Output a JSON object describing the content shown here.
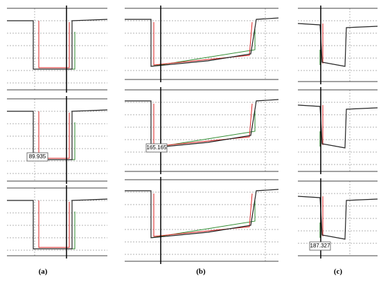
{
  "panels": [
    {
      "label": "(a)",
      "readout": "89.935"
    },
    {
      "label": "(b)",
      "readout": "165.165"
    },
    {
      "label": "(c)",
      "readout": "187.327"
    }
  ]
}
